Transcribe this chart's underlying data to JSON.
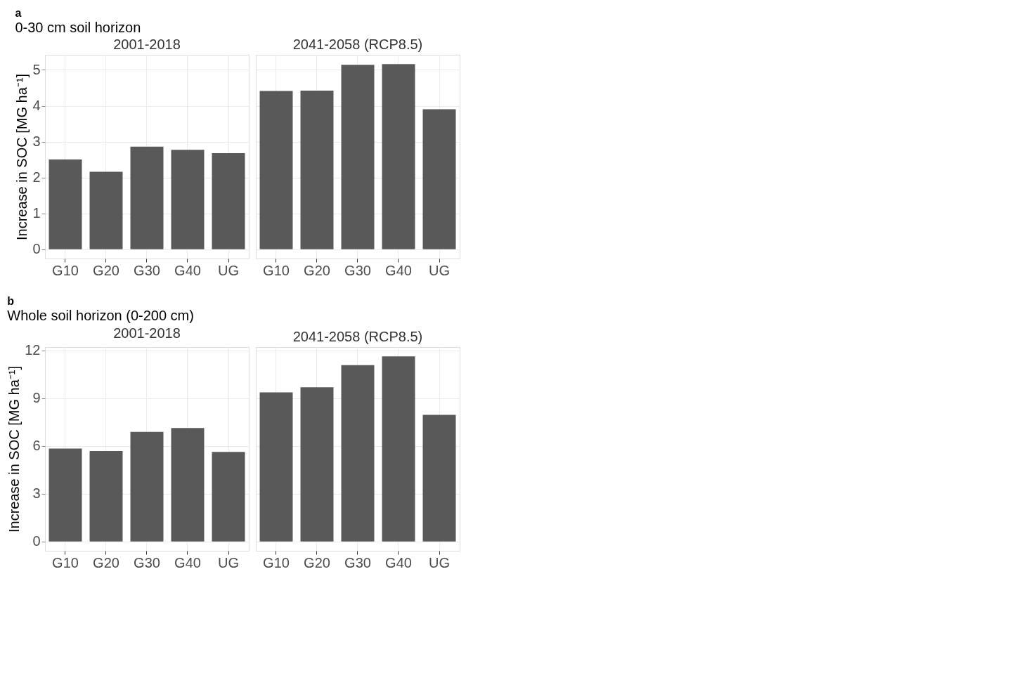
{
  "chart_data": [
    {
      "type": "bar",
      "title": "2001-2018",
      "annotations": [
        "a",
        "0-30 cm soil horizon"
      ],
      "ylabel": "Increase in SOC [MG ha⁻¹]",
      "categories": [
        "G10",
        "G20",
        "G30",
        "G40",
        "UG"
      ],
      "values": [
        2.5,
        2.16,
        2.86,
        2.77,
        2.68
      ],
      "color": "#595959",
      "ylim": [
        -0.26,
        5.42
      ],
      "yticks": [
        0,
        1,
        2,
        3,
        4,
        5
      ],
      "grid": true
    },
    {
      "type": "bar",
      "title": "2041-2058 (RCP8.5)",
      "categories": [
        "G10",
        "G20",
        "G30",
        "G40",
        "UG"
      ],
      "values": [
        4.41,
        4.42,
        5.14,
        5.16,
        3.9
      ],
      "color": "#595959",
      "ylim": [
        -0.26,
        5.42
      ],
      "yticks": [
        0,
        1,
        2,
        3,
        4,
        5
      ],
      "grid": true,
      "tick_labels": "x"
    },
    {
      "type": "bar",
      "title": "2001-2018",
      "annotations": [
        "b",
        "Whole soil horizon (0-200 cm)"
      ],
      "ylabel": "Increase in SOC [MG ha⁻¹]",
      "categories": [
        "G10",
        "G20",
        "G30",
        "G40",
        "UG"
      ],
      "values": [
        5.84,
        5.68,
        6.89,
        7.13,
        5.63
      ],
      "color": "#595959",
      "ylim": [
        -0.58,
        12.21
      ],
      "yticks": [
        0,
        3,
        6,
        9,
        12
      ],
      "grid": true
    },
    {
      "type": "bar",
      "title": "2041-2058 (RCP8.5)",
      "categories": [
        "G10",
        "G20",
        "G30",
        "G40",
        "UG"
      ],
      "values": [
        9.36,
        9.69,
        11.07,
        11.63,
        7.95
      ],
      "color": "#595959",
      "ylim": [
        -0.58,
        12.21
      ],
      "yticks": [
        0,
        3,
        6,
        9,
        12
      ],
      "grid": true,
      "tick_labels": "x"
    }
  ]
}
